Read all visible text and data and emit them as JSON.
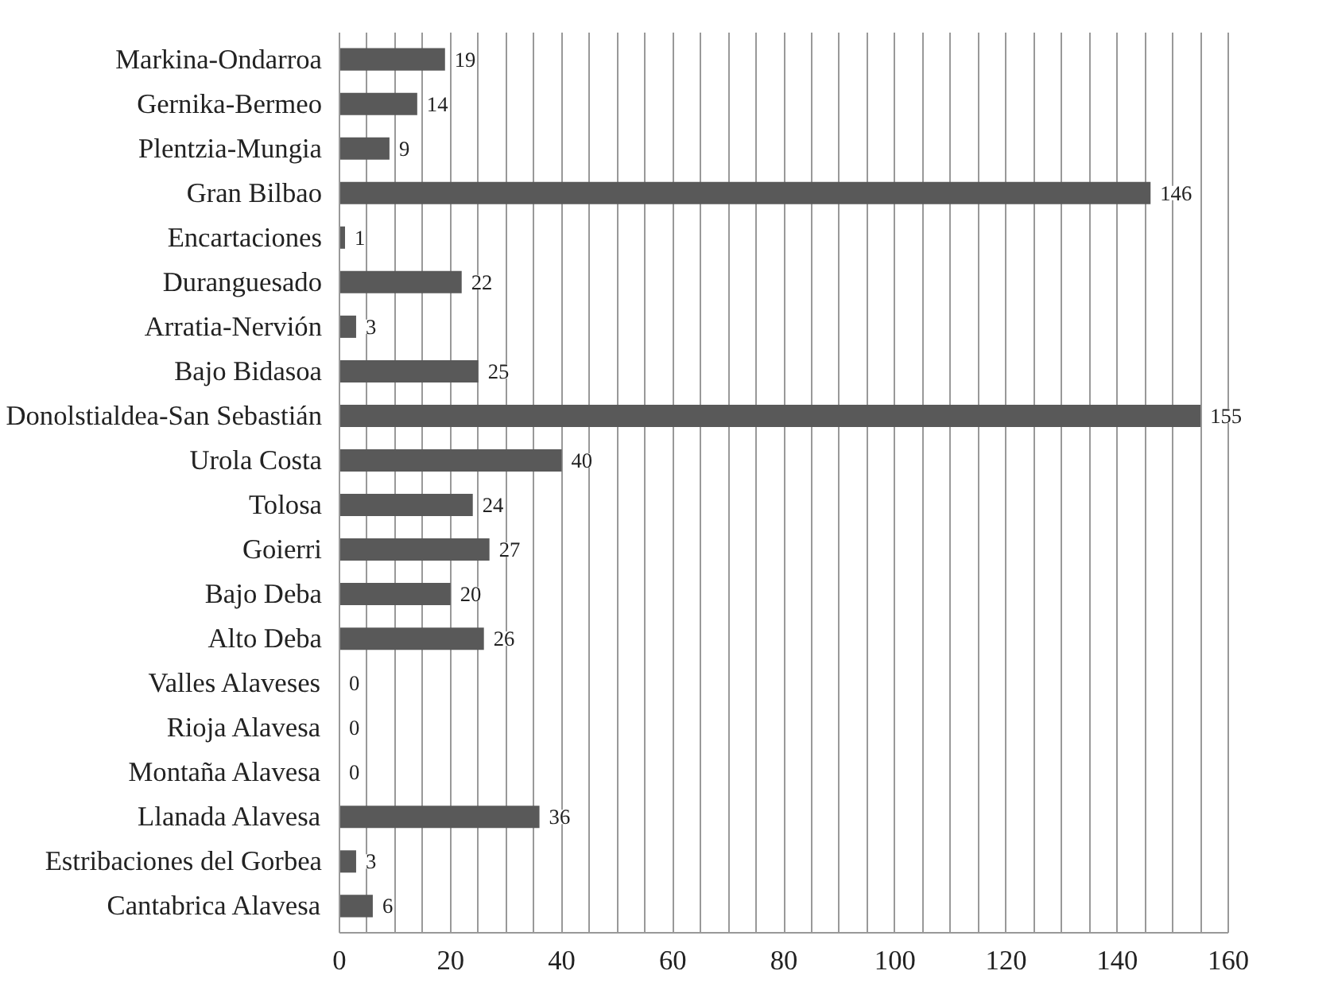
{
  "chart_data": {
    "type": "bar",
    "orientation": "horizontal",
    "categories": [
      "Markina-Ondarroa",
      "Gernika-Bermeo",
      "Plentzia-Mungia",
      "Gran Bilbao",
      "Encartaciones",
      "Duranguesado",
      "Arratia-Nervión",
      "Bajo Bidasoa",
      "Donolstialdea-San Sebastián",
      "Urola Costa",
      "Tolosa",
      "Goierri",
      "Bajo Deba",
      "Alto Deba",
      "Valles Alaveses",
      "Rioja Alavesa",
      "Montaña Alavesa",
      "Llanada Alavesa",
      "Estribaciones del Gorbea",
      "Cantabrica Alavesa"
    ],
    "values": [
      19,
      14,
      9,
      146,
      1,
      22,
      3,
      25,
      155,
      40,
      24,
      27,
      20,
      26,
      0,
      0,
      0,
      36,
      3,
      6
    ],
    "color": "#595959",
    "data_labels": true,
    "xlim": [
      0,
      160
    ],
    "xticks": [
      0,
      {
        "value": 5,
        "label": null
      },
      {
        "value": 10,
        "label": null
      },
      {
        "value": 15,
        "label": null
      },
      20,
      {
        "value": 25,
        "label": null
      },
      {
        "value": 30,
        "label": null
      },
      {
        "value": 35,
        "label": null
      },
      40,
      {
        "value": 45,
        "label": null
      },
      {
        "value": 50,
        "label": null
      },
      {
        "value": 55,
        "label": null
      },
      60,
      {
        "value": 65,
        "label": null
      },
      {
        "value": 70,
        "label": null
      },
      {
        "value": 75,
        "label": null
      },
      80,
      {
        "value": 85,
        "label": null
      },
      {
        "value": 90,
        "label": null
      },
      {
        "value": 95,
        "label": null
      },
      100,
      {
        "value": 105,
        "label": null
      },
      {
        "value": 110,
        "label": null
      },
      {
        "value": 115,
        "label": null
      },
      120,
      {
        "value": 125,
        "label": null
      },
      {
        "value": 130,
        "label": null
      },
      {
        "value": 135,
        "label": null
      },
      140,
      {
        "value": 145,
        "label": null
      },
      {
        "value": 150,
        "label": null
      },
      {
        "value": 155,
        "label": null
      },
      160
    ],
    "grid": "x"
  }
}
